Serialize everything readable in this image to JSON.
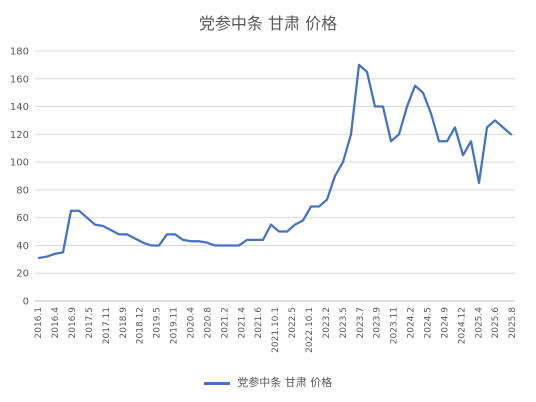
{
  "chart_data": {
    "type": "line",
    "title": "党参中条 甘肃 价格",
    "xlabel": "",
    "ylabel": "",
    "ylim": [
      0,
      180
    ],
    "y_ticks": [
      0,
      20,
      40,
      60,
      80,
      100,
      120,
      140,
      160,
      180
    ],
    "grid": true,
    "legend_position": "bottom",
    "x_labels": [
      "2016.1",
      "2016.4",
      "2016.9",
      "2017.5",
      "2017.11",
      "2018.9",
      "2018.12",
      "2019.5",
      "2019.11",
      "2020.4",
      "2020.8",
      "2021.2",
      "2021.4",
      "2021.6",
      "2021.10.1",
      "2022.5",
      "2022.10.1",
      "2023.2",
      "2023.5",
      "2023.7",
      "2023.9",
      "2023.11",
      "2024.2",
      "2024.5",
      "2024.9",
      "2024.12",
      "2025.4",
      "2025.6",
      "2025.8"
    ],
    "series": [
      {
        "name": "党参中条 甘肃 价格",
        "color": "#4472C4",
        "values": [
          31,
          32,
          34,
          35,
          65,
          65,
          60,
          55,
          54,
          51,
          48,
          48,
          45,
          42,
          40,
          40,
          48,
          48,
          44,
          43,
          43,
          42,
          40,
          40,
          40,
          40,
          44,
          44,
          44,
          55,
          50,
          50,
          55,
          58,
          68,
          68,
          73,
          90,
          100,
          120,
          170,
          165,
          140,
          140,
          115,
          120,
          140,
          155,
          150,
          135,
          115,
          115,
          125,
          105,
          115,
          85,
          125,
          130,
          125,
          120
        ]
      }
    ]
  }
}
